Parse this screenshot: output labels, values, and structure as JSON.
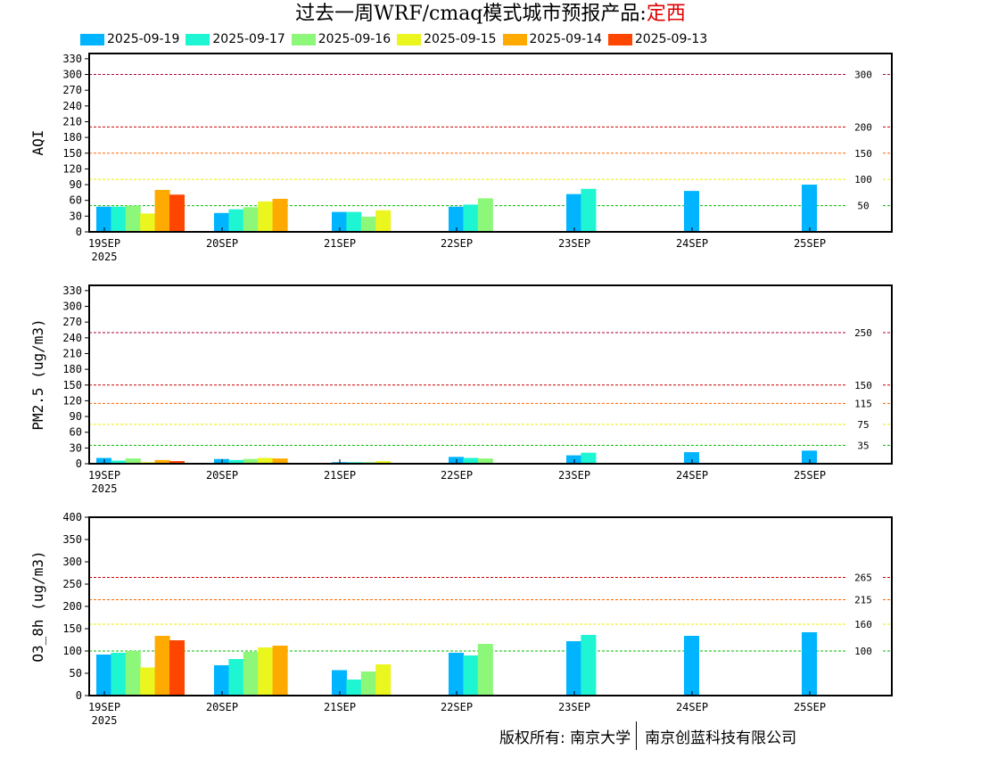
{
  "title": {
    "prefix": "过去一周WRF/cmaq模式城市预报产品:",
    "location": "定西"
  },
  "legend": [
    {
      "label": "2025-09-19",
      "color": "#00b4ff"
    },
    {
      "label": "2025-09-17",
      "color": "#1ef5d2"
    },
    {
      "label": "2025-09-16",
      "color": "#8cf778"
    },
    {
      "label": "2025-09-15",
      "color": "#ebf51e"
    },
    {
      "label": "2025-09-14",
      "color": "#ffaa00"
    },
    {
      "label": "2025-09-13",
      "color": "#ff4600"
    }
  ],
  "footer": {
    "left": "版权所有: 南京大学",
    "right": "南京创蓝科技有限公司"
  },
  "chart_data": [
    {
      "type": "bar",
      "ylabel": "AQI",
      "ylim": [
        0,
        340
      ],
      "yticks": [
        0,
        30,
        60,
        90,
        120,
        150,
        180,
        210,
        240,
        270,
        300,
        330
      ],
      "grid": false,
      "x_labels": [
        "19SEP",
        "20SEP",
        "21SEP",
        "22SEP",
        "23SEP",
        "24SEP",
        "25SEP"
      ],
      "x_year": "2025",
      "thresholds": [
        {
          "value": 300,
          "label": "300",
          "color": "#aa0044"
        },
        {
          "value": 200,
          "label": "200",
          "color": "#cc0000"
        },
        {
          "value": 150,
          "label": "150",
          "color": "#ff6600"
        },
        {
          "value": 100,
          "label": "100",
          "color": "#eeee00"
        },
        {
          "value": 50,
          "label": "50",
          "color": "#00bb00"
        }
      ],
      "series": [
        {
          "name": "2025-09-19",
          "values": [
            48,
            36,
            38,
            48,
            72,
            78,
            90
          ]
        },
        {
          "name": "2025-09-17",
          "values": [
            48,
            43,
            38,
            52,
            82,
            null,
            null
          ]
        },
        {
          "name": "2025-09-16",
          "values": [
            50,
            47,
            29,
            64,
            null,
            null,
            null
          ]
        },
        {
          "name": "2025-09-15",
          "values": [
            35,
            58,
            41,
            null,
            null,
            null,
            null
          ]
        },
        {
          "name": "2025-09-14",
          "values": [
            80,
            63,
            null,
            null,
            null,
            null,
            null
          ]
        },
        {
          "name": "2025-09-13",
          "values": [
            71,
            null,
            null,
            null,
            null,
            null,
            null
          ]
        }
      ]
    },
    {
      "type": "bar",
      "ylabel": "PM2.5 (ug/m3)",
      "ylim": [
        0,
        340
      ],
      "yticks": [
        0,
        30,
        60,
        90,
        120,
        150,
        180,
        210,
        240,
        270,
        300,
        330
      ],
      "grid": false,
      "x_labels": [
        "19SEP",
        "20SEP",
        "21SEP",
        "22SEP",
        "23SEP",
        "24SEP",
        "25SEP"
      ],
      "x_year": "2025",
      "thresholds": [
        {
          "value": 250,
          "label": "250",
          "color": "#aa0044"
        },
        {
          "value": 150,
          "label": "150",
          "color": "#cc0000"
        },
        {
          "value": 115,
          "label": "115",
          "color": "#ff6600"
        },
        {
          "value": 75,
          "label": "75",
          "color": "#eeee00"
        },
        {
          "value": 35,
          "label": "35",
          "color": "#00bb00"
        }
      ],
      "series": [
        {
          "name": "2025-09-19",
          "values": [
            11,
            9,
            3,
            13,
            16,
            22,
            25
          ]
        },
        {
          "name": "2025-09-17",
          "values": [
            6,
            7,
            3,
            11,
            21,
            null,
            null
          ]
        },
        {
          "name": "2025-09-16",
          "values": [
            10,
            9,
            3,
            10,
            null,
            null,
            null
          ]
        },
        {
          "name": "2025-09-15",
          "values": [
            3,
            11,
            5,
            null,
            null,
            null,
            null
          ]
        },
        {
          "name": "2025-09-14",
          "values": [
            7,
            10,
            null,
            null,
            null,
            null,
            null
          ]
        },
        {
          "name": "2025-09-13",
          "values": [
            5,
            null,
            null,
            null,
            null,
            null,
            null
          ]
        }
      ]
    },
    {
      "type": "bar",
      "ylabel": "O3_8h (ug/m3)",
      "ylim": [
        0,
        400
      ],
      "yticks": [
        0,
        50,
        100,
        150,
        200,
        250,
        300,
        350,
        400
      ],
      "grid": false,
      "x_labels": [
        "19SEP",
        "20SEP",
        "21SEP",
        "22SEP",
        "23SEP",
        "24SEP",
        "25SEP"
      ],
      "x_year": "2025",
      "thresholds": [
        {
          "value": 265,
          "label": "265",
          "color": "#cc0000"
        },
        {
          "value": 215,
          "label": "215",
          "color": "#ff6600"
        },
        {
          "value": 160,
          "label": "160",
          "color": "#eeee00"
        },
        {
          "value": 100,
          "label": "100",
          "color": "#00bb00"
        }
      ],
      "series": [
        {
          "name": "2025-09-19",
          "values": [
            92,
            68,
            57,
            96,
            122,
            134,
            142
          ]
        },
        {
          "name": "2025-09-17",
          "values": [
            96,
            82,
            36,
            90,
            136,
            null,
            null
          ]
        },
        {
          "name": "2025-09-16",
          "values": [
            100,
            98,
            54,
            116,
            null,
            null,
            null
          ]
        },
        {
          "name": "2025-09-15",
          "values": [
            63,
            108,
            70,
            null,
            null,
            null,
            null
          ]
        },
        {
          "name": "2025-09-14",
          "values": [
            134,
            112,
            null,
            null,
            null,
            null,
            null
          ]
        },
        {
          "name": "2025-09-13",
          "values": [
            124,
            null,
            null,
            null,
            null,
            null,
            null
          ]
        }
      ]
    }
  ]
}
